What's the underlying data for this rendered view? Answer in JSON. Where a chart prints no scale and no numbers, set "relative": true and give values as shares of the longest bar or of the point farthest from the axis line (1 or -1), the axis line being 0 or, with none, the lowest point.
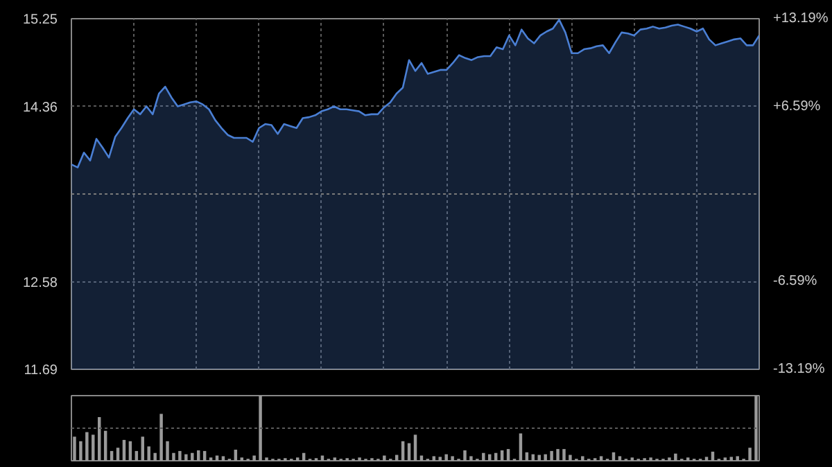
{
  "chart_data": [
    {
      "type": "area",
      "color": "#4a7fd4",
      "categories": [
        null,
        null,
        null,
        null,
        null,
        null,
        null,
        null,
        null,
        null,
        null,
        null,
        null,
        null,
        null,
        null,
        null,
        null,
        null,
        null,
        null,
        null,
        null,
        null,
        null,
        null,
        null,
        null,
        null,
        null,
        null,
        null,
        null,
        null,
        null,
        null,
        null,
        null,
        null,
        null,
        null,
        null,
        null,
        null,
        null,
        null,
        null,
        null,
        null,
        null,
        null,
        null,
        null,
        null,
        null,
        null,
        null,
        null,
        null,
        null,
        null,
        null,
        null,
        null,
        null,
        null,
        null,
        null,
        null,
        null,
        null,
        null,
        null,
        null,
        null,
        null,
        null,
        null,
        null,
        null,
        null,
        null,
        null,
        null,
        null,
        null,
        null,
        null,
        null,
        null,
        null,
        null,
        null,
        null,
        null,
        null,
        null,
        null,
        null,
        null,
        null,
        null,
        null,
        null,
        null,
        null,
        null,
        null,
        null,
        null,
        null
      ],
      "values": [
        13.77,
        13.74,
        13.89,
        13.81,
        14.03,
        13.94,
        13.84,
        14.05,
        14.14,
        14.24,
        14.33,
        14.28,
        14.36,
        14.28,
        14.49,
        14.56,
        14.45,
        14.36,
        14.38,
        14.4,
        14.41,
        14.38,
        14.33,
        14.22,
        14.14,
        14.07,
        14.04,
        14.04,
        14.04,
        14.0,
        14.14,
        14.18,
        14.17,
        14.08,
        14.18,
        14.16,
        14.14,
        14.24,
        14.25,
        14.27,
        14.31,
        14.33,
        14.36,
        14.33,
        14.33,
        14.32,
        14.31,
        14.27,
        14.28,
        14.28,
        14.35,
        14.4,
        14.49,
        14.55,
        14.83,
        14.72,
        14.8,
        14.69,
        14.71,
        14.73,
        14.73,
        14.8,
        14.88,
        14.85,
        14.83,
        14.86,
        14.87,
        14.87,
        14.96,
        14.94,
        15.08,
        14.98,
        15.14,
        15.05,
        15.0,
        15.08,
        15.12,
        15.15,
        15.24,
        15.11,
        14.9,
        14.9,
        14.94,
        14.95,
        14.97,
        14.98,
        14.9,
        15.01,
        15.11,
        15.1,
        15.08,
        15.14,
        15.15,
        15.17,
        15.15,
        15.16,
        15.18,
        15.19,
        15.17,
        15.15,
        15.12,
        15.15,
        15.04,
        14.98,
        15.0,
        15.02,
        15.04,
        15.05,
        14.98,
        14.98,
        15.08
      ],
      "ylim": [
        11.69,
        15.25
      ],
      "yticks": [
        11.69,
        12.58,
        14.36,
        15.25
      ],
      "ref_lines": [
        {
          "axis": "y",
          "value": 13.47,
          "color": "#7a7a7a",
          "line_style": "dotted"
        }
      ],
      "y2lim": [
        -13.19,
        13.19
      ],
      "y2ticks": [
        {
          "value": -13.19,
          "label": "-13.19%"
        },
        {
          "value": -6.59,
          "label": "-6.59%"
        },
        {
          "value": 6.59,
          "label": "+6.59%"
        },
        {
          "value": 13.19,
          "label": "+13.19%"
        }
      ],
      "grid": true,
      "line_style": "solid"
    },
    {
      "type": "bar",
      "relative": true,
      "color": "#9a9a9a",
      "categories": [
        null,
        null,
        null,
        null,
        null,
        null,
        null,
        null,
        null,
        null,
        null,
        null,
        null,
        null,
        null,
        null,
        null,
        null,
        null,
        null,
        null,
        null,
        null,
        null,
        null,
        null,
        null,
        null,
        null,
        null,
        null,
        null,
        null,
        null,
        null,
        null,
        null,
        null,
        null,
        null,
        null,
        null,
        null,
        null,
        null,
        null,
        null,
        null,
        null,
        null,
        null,
        null,
        null,
        null,
        null,
        null,
        null,
        null,
        null,
        null,
        null,
        null,
        null,
        null,
        null,
        null,
        null,
        null,
        null,
        null,
        null,
        null,
        null,
        null,
        null,
        null,
        null,
        null,
        null,
        null,
        null,
        null,
        null,
        null,
        null,
        null,
        null,
        null,
        null,
        null,
        null,
        null,
        null,
        null,
        null,
        null,
        null,
        null,
        null,
        null,
        null,
        null,
        null,
        null,
        null,
        null,
        null,
        null,
        null,
        null,
        null
      ],
      "values": [
        0.37,
        0.3,
        0.44,
        0.4,
        0.67,
        0.46,
        0.15,
        0.2,
        0.32,
        0.3,
        0.15,
        0.37,
        0.22,
        0.12,
        0.72,
        0.3,
        0.12,
        0.15,
        0.1,
        0.12,
        0.16,
        0.15,
        0.05,
        0.08,
        0.07,
        0.03,
        0.17,
        0.05,
        0.03,
        0.08,
        1.0,
        0.05,
        0.03,
        0.03,
        0.04,
        0.03,
        0.05,
        0.12,
        0.03,
        0.04,
        0.08,
        0.03,
        0.05,
        0.03,
        0.04,
        0.03,
        0.05,
        0.03,
        0.04,
        0.03,
        0.08,
        0.03,
        0.09,
        0.3,
        0.27,
        0.4,
        0.08,
        0.03,
        0.07,
        0.06,
        0.1,
        0.07,
        0.03,
        0.16,
        0.07,
        0.03,
        0.12,
        0.1,
        0.12,
        0.16,
        0.18,
        0.03,
        0.42,
        0.13,
        0.1,
        0.09,
        0.1,
        0.15,
        0.18,
        0.18,
        0.09,
        0.03,
        0.07,
        0.03,
        0.04,
        0.07,
        0.03,
        0.13,
        0.07,
        0.03,
        0.05,
        0.03,
        0.04,
        0.05,
        0.03,
        0.03,
        0.05,
        0.11,
        0.03,
        0.05,
        0.03,
        0.03,
        0.06,
        0.14,
        0.03,
        0.05,
        0.06,
        0.07,
        0.03,
        0.2,
        1.0
      ],
      "ref_lines": [
        {
          "axis": "y",
          "value": 0.5,
          "color": "#5a5a5a",
          "line_style": "dotted"
        }
      ]
    }
  ]
}
